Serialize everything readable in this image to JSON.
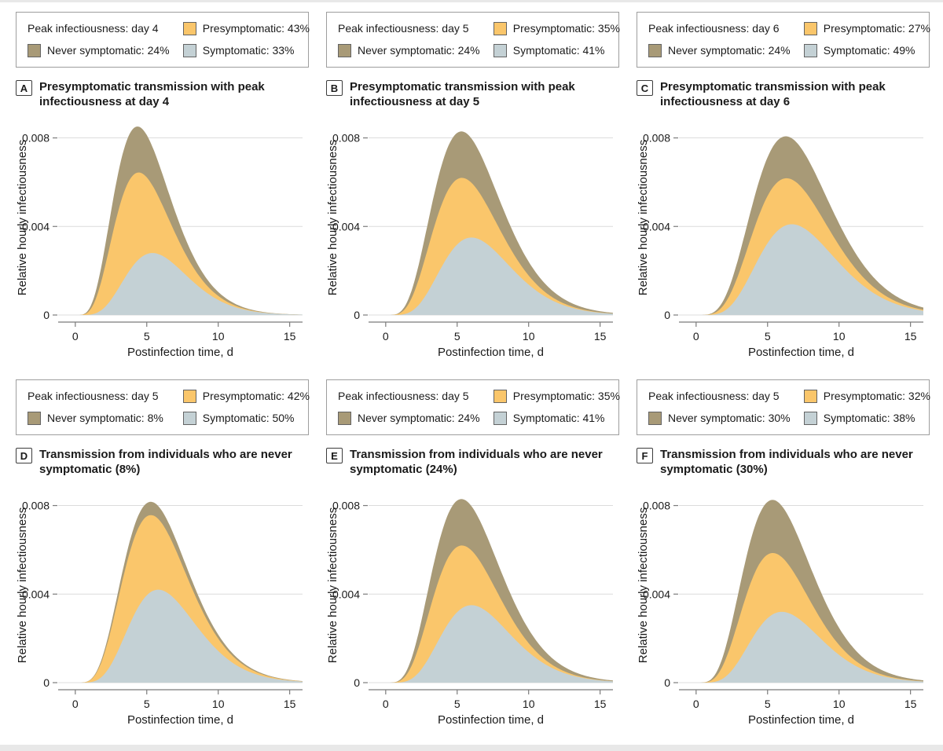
{
  "page": {
    "edge_strip_color": "#e8e8e8",
    "background": "#ffffff"
  },
  "colors": {
    "presymptomatic": "#FAC66B",
    "never_symptomatic": "#A89A77",
    "symptomatic": "#C4D1D5",
    "grid": "#DCDCDC",
    "axis": "#7B7B7B",
    "text": "#1A1A1A"
  },
  "chart_data": {
    "type": "area",
    "subtype": "stacked-area-small-multiples",
    "xlabel": "Postinfection time, d",
    "ylabel": "Relative hourly infectiousness",
    "x_ticks": [
      0,
      5,
      10,
      15
    ],
    "y_ticks": [
      {
        "v": 0,
        "label": "0"
      },
      {
        "v": 0.004,
        "label": "0.004"
      },
      {
        "v": 0.008,
        "label": "0.008"
      }
    ],
    "xlim": [
      -1.2,
      15.9
    ],
    "ylim": [
      0,
      0.0088
    ],
    "grid": true,
    "legend_position": "above-each-panel",
    "stack_order_bottom_to_top": [
      "symptomatic",
      "presymptomatic",
      "never_symptomatic"
    ],
    "panels": [
      {
        "letter": "A",
        "title": "Presymptomatic transmission with peak infectiousness at day 4",
        "legend": {
          "peak_label": "Peak infectiousness: day 4",
          "presymptomatic_label": "Presymptomatic: 43%",
          "never_label": "Never symptomatic: 24%",
          "symptomatic_label": "Symptomatic: 33%"
        },
        "values": {
          "peak_day": 4,
          "presymptomatic_pct": 43,
          "never_symptomatic_pct": 24,
          "symptomatic_pct": 33
        },
        "peaks": {
          "total": {
            "day": 4,
            "value": 0.0084
          },
          "presymptomatic_boundary": {
            "day": 4.1,
            "value": 0.0063
          },
          "symptomatic": {
            "day": 5.4,
            "value": 0.0028
          }
        },
        "bands": [
          {
            "name": "symptomatic",
            "peak": 0.0028,
            "peak_day": 5.4,
            "shape": 6
          },
          {
            "name": "presymptomatic",
            "peak": 0.0041,
            "peak_day": 3.9,
            "shape": 5
          },
          {
            "name": "never_symptomatic",
            "peak": 0.0021,
            "peak_day": 4.1,
            "shape": 4.5
          }
        ]
      },
      {
        "letter": "B",
        "title": "Presymptomatic transmission with peak infectiousness at day 5",
        "legend": {
          "peak_label": "Peak infectiousness: day 5",
          "presymptomatic_label": "Presymptomatic: 35%",
          "never_label": "Never symptomatic: 24%",
          "symptomatic_label": "Symptomatic: 41%"
        },
        "values": {
          "peak_day": 5,
          "presymptomatic_pct": 35,
          "never_symptomatic_pct": 24,
          "symptomatic_pct": 41
        },
        "peaks": {
          "total": {
            "day": 5,
            "value": 0.0081
          },
          "presymptomatic_boundary": {
            "day": 5.1,
            "value": 0.0062
          },
          "symptomatic": {
            "day": 6,
            "value": 0.0035
          }
        },
        "bands": [
          {
            "name": "symptomatic",
            "peak": 0.0035,
            "peak_day": 6.0,
            "shape": 6
          },
          {
            "name": "presymptomatic",
            "peak": 0.003,
            "peak_day": 4.6,
            "shape": 5
          },
          {
            "name": "never_symptomatic",
            "peak": 0.0021,
            "peak_day": 5.2,
            "shape": 4.5
          }
        ]
      },
      {
        "letter": "C",
        "title": "Presymptomatic transmission with peak infectiousness at day 6",
        "legend": {
          "peak_label": "Peak infectiousness: day 6",
          "presymptomatic_label": "Presymptomatic: 27%",
          "never_label": "Never symptomatic: 24%",
          "symptomatic_label": "Symptomatic: 49%"
        },
        "values": {
          "peak_day": 6,
          "presymptomatic_pct": 27,
          "never_symptomatic_pct": 24,
          "symptomatic_pct": 49
        },
        "peaks": {
          "total": {
            "day": 6,
            "value": 0.008
          },
          "presymptomatic_boundary": {
            "day": 6.1,
            "value": 0.0061
          },
          "symptomatic": {
            "day": 6.7,
            "value": 0.0041
          }
        },
        "bands": [
          {
            "name": "symptomatic",
            "peak": 0.0041,
            "peak_day": 6.7,
            "shape": 6
          },
          {
            "name": "presymptomatic",
            "peak": 0.0022,
            "peak_day": 5.6,
            "shape": 5
          },
          {
            "name": "never_symptomatic",
            "peak": 0.0019,
            "peak_day": 6.1,
            "shape": 4.5
          }
        ]
      },
      {
        "letter": "D",
        "title": "Transmission from individuals who are never symptomatic (8%)",
        "legend": {
          "peak_label": "Peak infectiousness: day 5",
          "presymptomatic_label": "Presymptomatic: 42%",
          "never_label": "Never symptomatic: 8%",
          "symptomatic_label": "Symptomatic: 50%"
        },
        "values": {
          "peak_day": 5,
          "presymptomatic_pct": 42,
          "never_symptomatic_pct": 8,
          "symptomatic_pct": 50
        },
        "peaks": {
          "total": {
            "day": 5,
            "value": 0.0081
          },
          "presymptomatic_boundary": {
            "day": 5,
            "value": 0.0075
          },
          "symptomatic": {
            "day": 5.8,
            "value": 0.0042
          }
        },
        "bands": [
          {
            "name": "symptomatic",
            "peak": 0.0042,
            "peak_day": 5.8,
            "shape": 6
          },
          {
            "name": "presymptomatic",
            "peak": 0.0036,
            "peak_day": 4.7,
            "shape": 5
          },
          {
            "name": "never_symptomatic",
            "peak": 0.0006,
            "peak_day": 5.2,
            "shape": 4.5
          }
        ]
      },
      {
        "letter": "E",
        "title": "Transmission from individuals who are never symptomatic (24%)",
        "legend": {
          "peak_label": "Peak infectiousness: day 5",
          "presymptomatic_label": "Presymptomatic: 35%",
          "never_label": "Never symptomatic: 24%",
          "symptomatic_label": "Symptomatic: 41%"
        },
        "values": {
          "peak_day": 5,
          "presymptomatic_pct": 35,
          "never_symptomatic_pct": 24,
          "symptomatic_pct": 41
        },
        "peaks": {
          "total": {
            "day": 5,
            "value": 0.0081
          },
          "presymptomatic_boundary": {
            "day": 5.1,
            "value": 0.0062
          },
          "symptomatic": {
            "day": 6,
            "value": 0.0035
          }
        },
        "bands": [
          {
            "name": "symptomatic",
            "peak": 0.0035,
            "peak_day": 6.0,
            "shape": 6
          },
          {
            "name": "presymptomatic",
            "peak": 0.003,
            "peak_day": 4.6,
            "shape": 5
          },
          {
            "name": "never_symptomatic",
            "peak": 0.0021,
            "peak_day": 5.2,
            "shape": 4.5
          }
        ]
      },
      {
        "letter": "F",
        "title": "Transmission from individuals who are never symptomatic (30%)",
        "legend": {
          "peak_label": "Peak infectiousness: day 5",
          "presymptomatic_label": "Presymptomatic: 32%",
          "never_label": "Never symptomatic: 30%",
          "symptomatic_label": "Symptomatic: 38%"
        },
        "values": {
          "peak_day": 5,
          "presymptomatic_pct": 32,
          "never_symptomatic_pct": 30,
          "symptomatic_pct": 38
        },
        "peaks": {
          "total": {
            "day": 5,
            "value": 0.0081
          },
          "presymptomatic_boundary": {
            "day": 5,
            "value": 0.0057
          },
          "symptomatic": {
            "day": 6,
            "value": 0.0032
          }
        },
        "bands": [
          {
            "name": "symptomatic",
            "peak": 0.0032,
            "peak_day": 6.0,
            "shape": 6
          },
          {
            "name": "presymptomatic",
            "peak": 0.0029,
            "peak_day": 4.7,
            "shape": 5
          },
          {
            "name": "never_symptomatic",
            "peak": 0.0024,
            "peak_day": 5.3,
            "shape": 4.5
          }
        ]
      }
    ]
  }
}
